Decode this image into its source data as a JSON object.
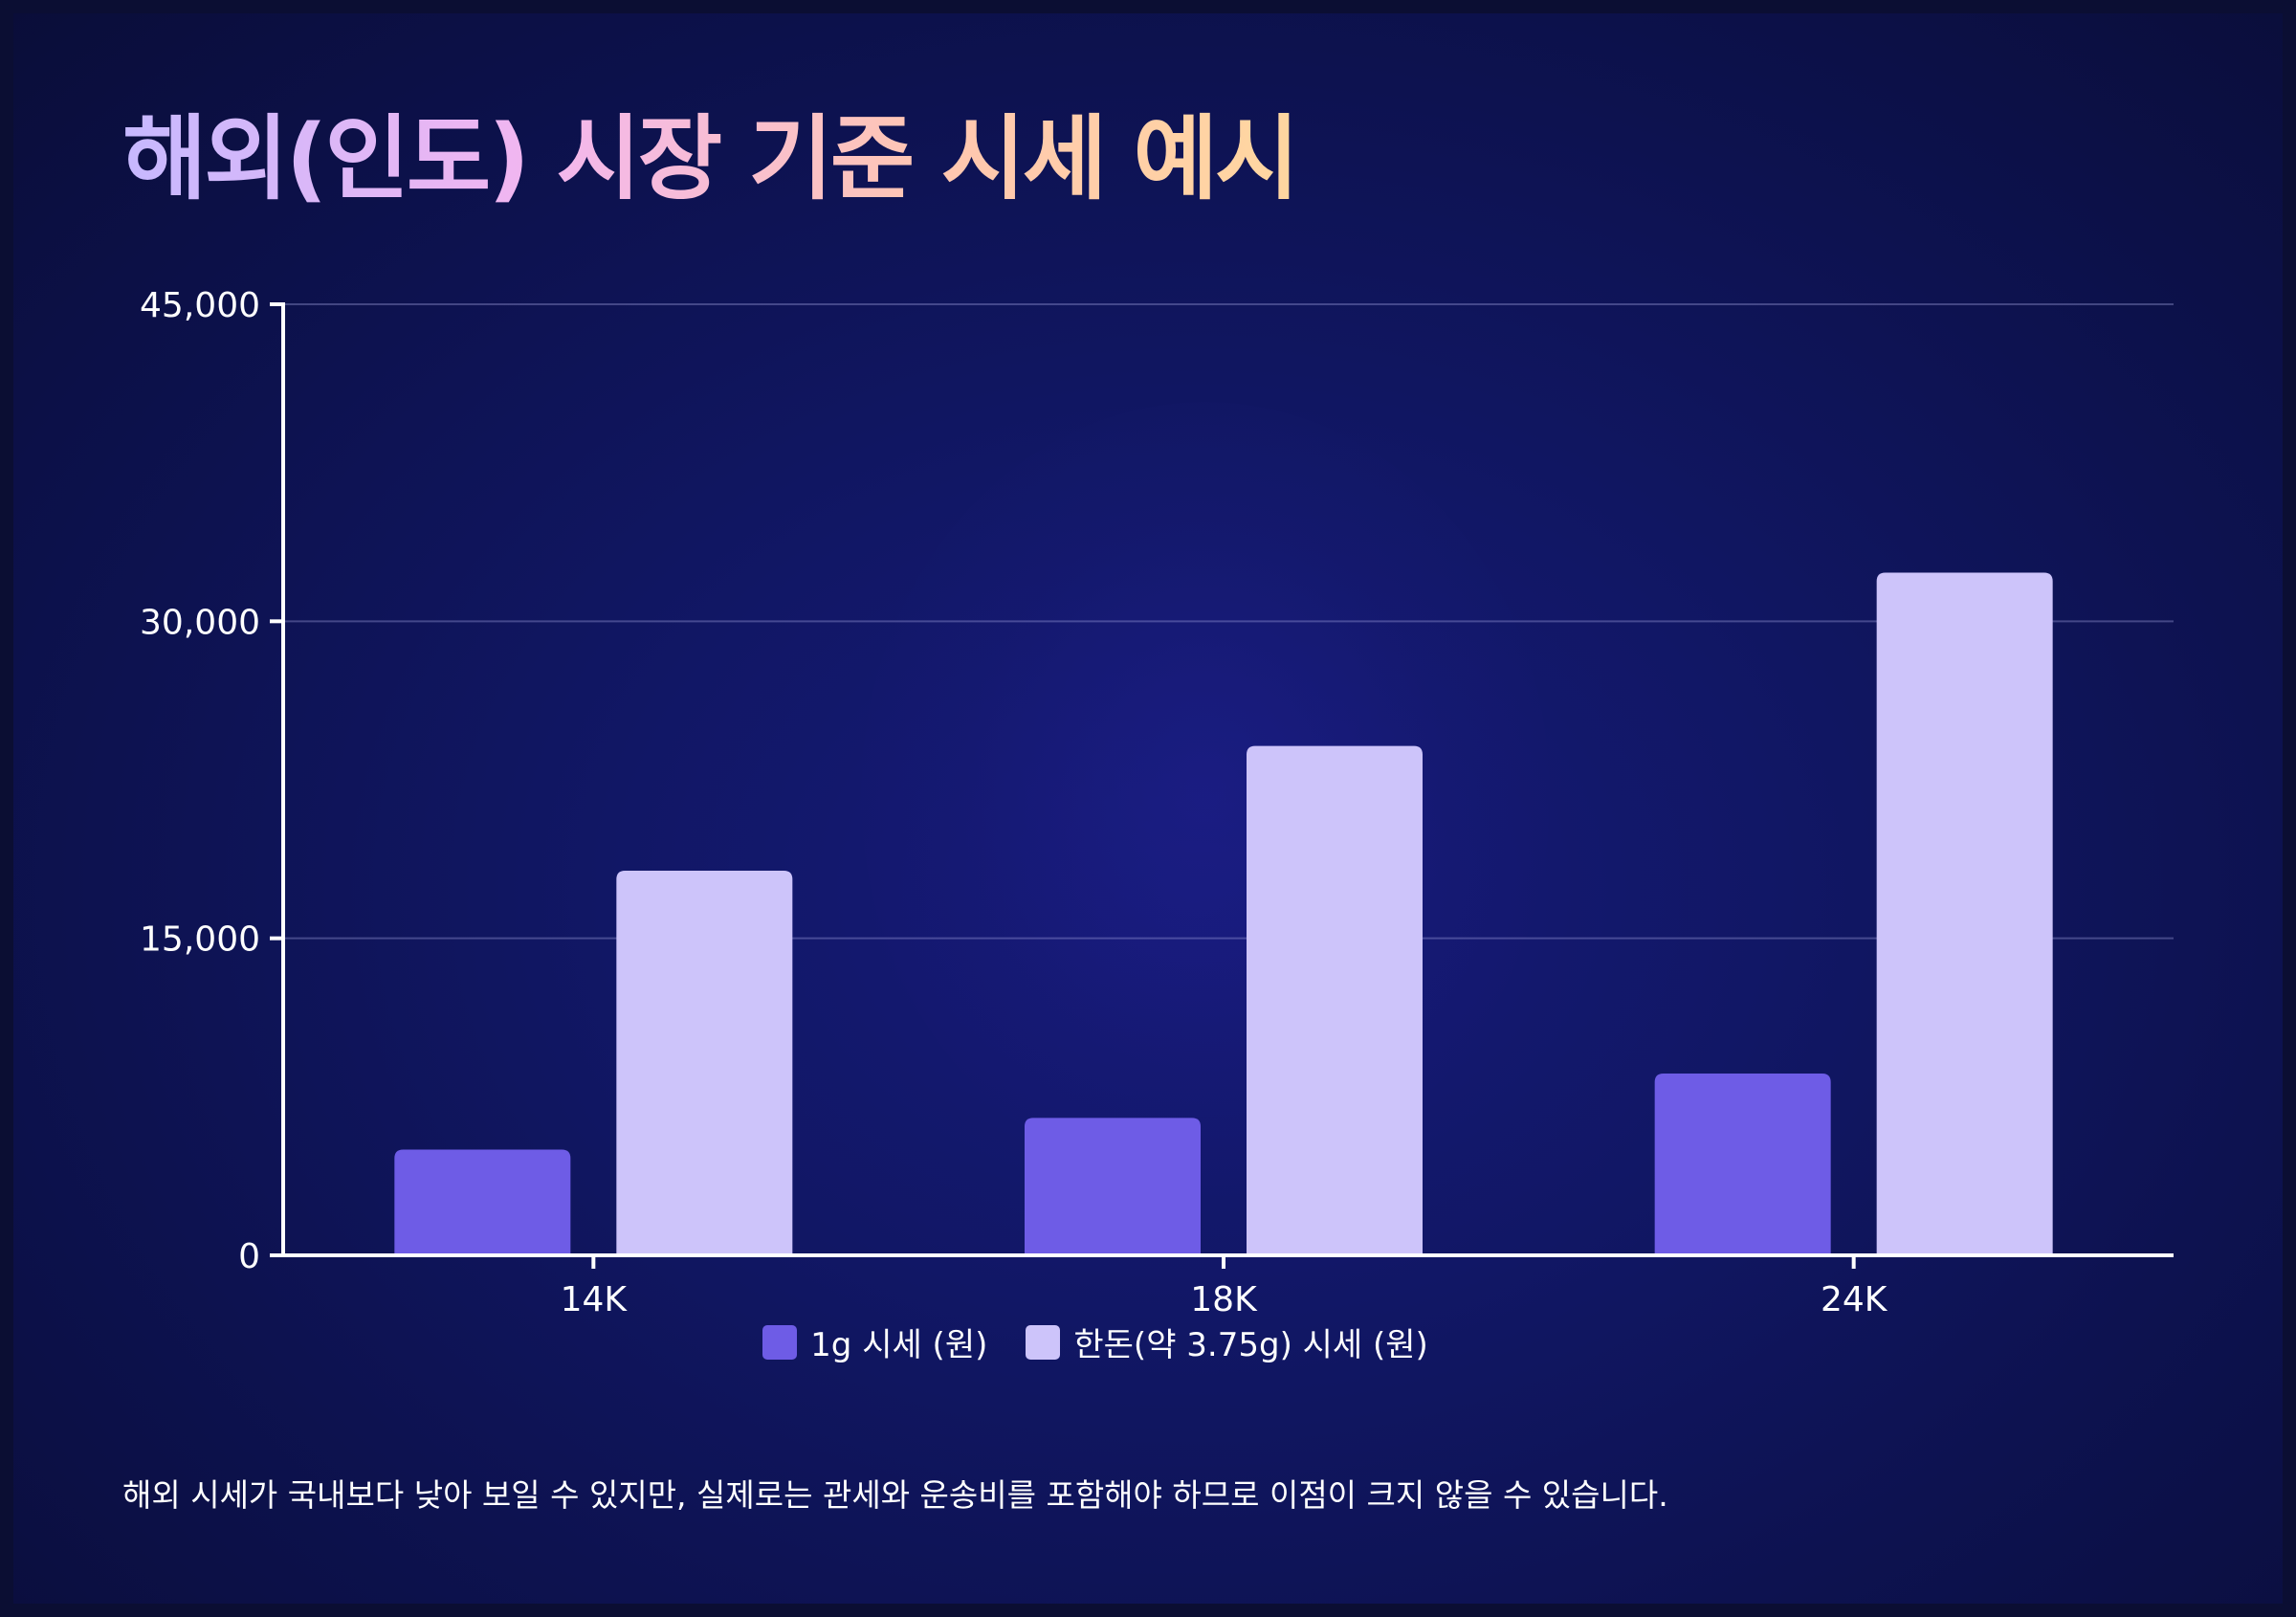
{
  "title": "해외(인도) 시장 기준 시세 예시",
  "footnote": "해외 시세가 국내보다 낮아 보일 수 있지만, 실제로는 관세와 운송비를 포함해야 하므로 이점이 크지 않을 수 있습니다.",
  "chart_data": {
    "type": "bar",
    "title": "",
    "xlabel": "",
    "ylabel": "",
    "categories": [
      "14K",
      "18K",
      "24K"
    ],
    "series": [
      {
        "name": "1g 시세 (원)",
        "values": [
          5000,
          6500,
          8600
        ],
        "color": "#6e5ce6"
      },
      {
        "name": "한돈(약 3.75g) 시세 (원)",
        "values": [
          18200,
          24100,
          32300
        ],
        "color": "#cdc4fa"
      }
    ],
    "ylim": [
      0,
      45000
    ],
    "yticks": [
      "0",
      "15,000",
      "30,000",
      "45,000"
    ],
    "ytick_values": [
      0,
      15000,
      30000,
      45000
    ],
    "grid": true,
    "legend": "bottom"
  }
}
